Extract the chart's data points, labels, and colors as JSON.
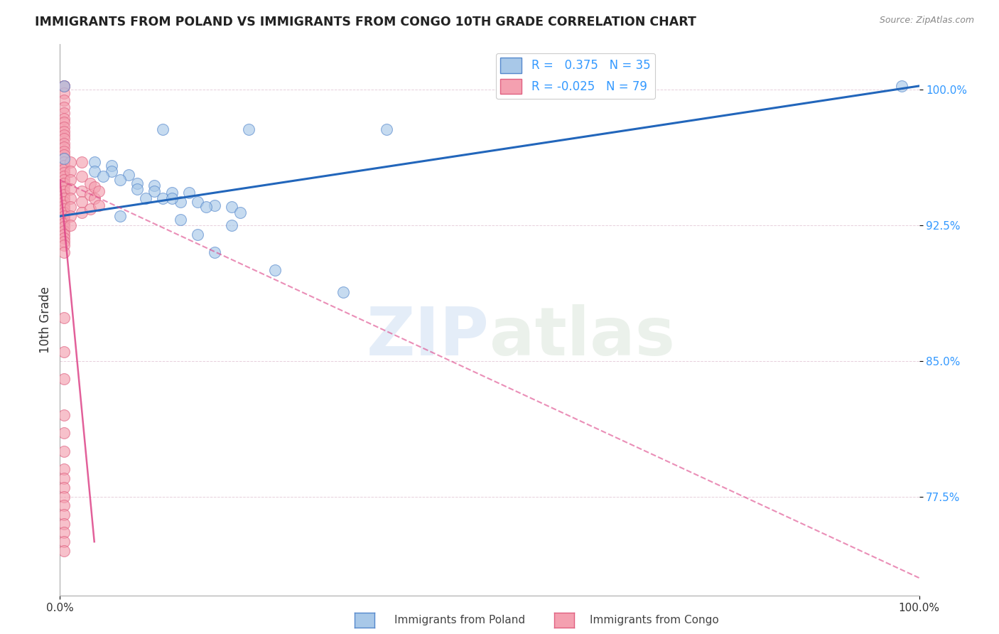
{
  "title": "IMMIGRANTS FROM POLAND VS IMMIGRANTS FROM CONGO 10TH GRADE CORRELATION CHART",
  "source": "Source: ZipAtlas.com",
  "ylabel": "10th Grade",
  "xlim": [
    0.0,
    1.0
  ],
  "ylim": [
    0.72,
    1.025
  ],
  "yticks": [
    0.775,
    0.85,
    0.925,
    1.0
  ],
  "ytick_labels": [
    "77.5%",
    "85.0%",
    "92.5%",
    "100.0%"
  ],
  "xtick_labels": [
    "0.0%",
    "100.0%"
  ],
  "xticks": [
    0.0,
    1.0
  ],
  "poland_color": "#a8c8e8",
  "congo_color": "#f4a0b0",
  "poland_edge": "#5588cc",
  "congo_edge": "#e06080",
  "trend_poland_color": "#2266bb",
  "trend_congo_color": "#dd4488",
  "R_poland": 0.375,
  "N_poland": 35,
  "R_congo": -0.025,
  "N_congo": 79,
  "watermark": "ZIPatlas",
  "trend_poland_x0": 0.0,
  "trend_poland_y0": 0.93,
  "trend_poland_x1": 1.0,
  "trend_poland_y1": 1.002,
  "trend_congo_x0": 0.0,
  "trend_congo_y0": 0.95,
  "trend_congo_x1": 1.0,
  "trend_congo_y1": 0.73,
  "poland_scatter_x": [
    0.005,
    0.12,
    0.22,
    0.38,
    0.005,
    0.04,
    0.06,
    0.04,
    0.06,
    0.08,
    0.07,
    0.09,
    0.11,
    0.11,
    0.13,
    0.15,
    0.1,
    0.12,
    0.14,
    0.16,
    0.18,
    0.2,
    0.05,
    0.09,
    0.13,
    0.17,
    0.21,
    0.07,
    0.14,
    0.2,
    0.16,
    0.18,
    0.25,
    0.33,
    0.98
  ],
  "poland_scatter_y": [
    1.002,
    0.978,
    0.978,
    0.978,
    0.962,
    0.96,
    0.958,
    0.955,
    0.955,
    0.953,
    0.95,
    0.948,
    0.947,
    0.944,
    0.943,
    0.943,
    0.94,
    0.94,
    0.938,
    0.938,
    0.936,
    0.935,
    0.952,
    0.945,
    0.94,
    0.935,
    0.932,
    0.93,
    0.928,
    0.925,
    0.92,
    0.91,
    0.9,
    0.888,
    1.002
  ],
  "congo_scatter_x": [
    0.005,
    0.005,
    0.005,
    0.005,
    0.005,
    0.005,
    0.005,
    0.005,
    0.005,
    0.005,
    0.005,
    0.005,
    0.005,
    0.005,
    0.005,
    0.005,
    0.005,
    0.005,
    0.005,
    0.005,
    0.005,
    0.005,
    0.005,
    0.005,
    0.005,
    0.005,
    0.005,
    0.005,
    0.005,
    0.005,
    0.005,
    0.005,
    0.005,
    0.005,
    0.005,
    0.005,
    0.005,
    0.005,
    0.005,
    0.005,
    0.005,
    0.005,
    0.005,
    0.012,
    0.012,
    0.012,
    0.012,
    0.012,
    0.012,
    0.012,
    0.012,
    0.025,
    0.025,
    0.025,
    0.025,
    0.025,
    0.035,
    0.035,
    0.035,
    0.04,
    0.04,
    0.045,
    0.045,
    0.005,
    0.005,
    0.005,
    0.005,
    0.005,
    0.005,
    0.005,
    0.005,
    0.005,
    0.005,
    0.005,
    0.005,
    0.005,
    0.005,
    0.005,
    0.005
  ],
  "congo_scatter_y": [
    1.002,
    1.002,
    1.002,
    0.998,
    0.994,
    0.99,
    0.987,
    0.984,
    0.982,
    0.979,
    0.977,
    0.975,
    0.973,
    0.97,
    0.968,
    0.966,
    0.964,
    0.962,
    0.96,
    0.958,
    0.956,
    0.954,
    0.952,
    0.95,
    0.948,
    0.946,
    0.944,
    0.942,
    0.94,
    0.938,
    0.936,
    0.934,
    0.932,
    0.93,
    0.928,
    0.926,
    0.924,
    0.922,
    0.92,
    0.918,
    0.916,
    0.914,
    0.91,
    0.96,
    0.955,
    0.95,
    0.945,
    0.94,
    0.935,
    0.93,
    0.925,
    0.96,
    0.952,
    0.944,
    0.938,
    0.932,
    0.948,
    0.942,
    0.934,
    0.946,
    0.94,
    0.944,
    0.936,
    0.874,
    0.855,
    0.84,
    0.82,
    0.81,
    0.8,
    0.79,
    0.785,
    0.78,
    0.775,
    0.77,
    0.765,
    0.76,
    0.755,
    0.75,
    0.745
  ]
}
